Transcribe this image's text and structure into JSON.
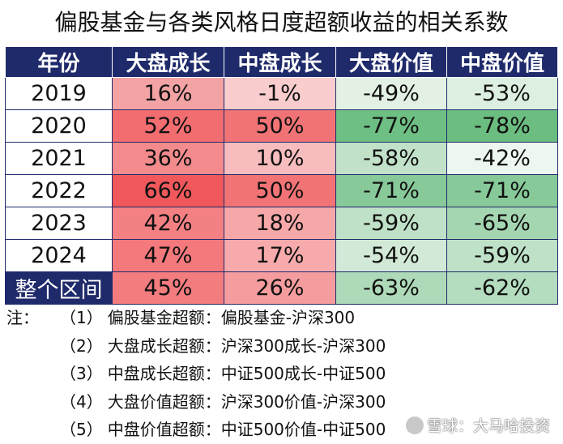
{
  "title": "偏股基金与各类风格日度超额收益的相关系数",
  "table": {
    "headers": [
      "年份",
      "大盘成长",
      "中盘成长",
      "大盘价值",
      "中盘价值"
    ],
    "rows": [
      {
        "year": "2019",
        "values": [
          "16%",
          "-1%",
          "-49%",
          "-53%"
        ],
        "colors": [
          "#f4a3a4",
          "#f9cdcd",
          "#e3f1e5",
          "#dcefe0"
        ]
      },
      {
        "year": "2020",
        "values": [
          "52%",
          "50%",
          "-77%",
          "-78%"
        ],
        "colors": [
          "#f26d70",
          "#f27375",
          "#6ebf83",
          "#6bbd80"
        ]
      },
      {
        "year": "2021",
        "values": [
          "36%",
          "10%",
          "-58%",
          "-42%"
        ],
        "colors": [
          "#f38a8c",
          "#f7bcbd",
          "#c1e2c9",
          "#edf6ef"
        ]
      },
      {
        "year": "2022",
        "values": [
          "66%",
          "50%",
          "-71%",
          "-71%"
        ],
        "colors": [
          "#f0585b",
          "#f27375",
          "#87c999",
          "#87c999"
        ]
      },
      {
        "year": "2023",
        "values": [
          "42%",
          "18%",
          "-59%",
          "-65%"
        ],
        "colors": [
          "#f38083",
          "#f6a8a9",
          "#bfe1c7",
          "#a5d6b2"
        ]
      },
      {
        "year": "2024",
        "values": [
          "47%",
          "17%",
          "-54%",
          "-59%"
        ],
        "colors": [
          "#f3797c",
          "#f6aaab",
          "#d1e9d6",
          "#bfe1c7"
        ]
      }
    ],
    "total": {
      "label": "整个区间",
      "values": [
        "45%",
        "26%",
        "-63%",
        "-62%"
      ],
      "colors": [
        "#f37c7f",
        "#f59c9e",
        "#afdab9",
        "#b4dcbe"
      ]
    }
  },
  "notes": {
    "label": "注：",
    "items": [
      {
        "num": "（1）",
        "text": "偏股基金超额：偏股基金-沪深300"
      },
      {
        "num": "（2）",
        "text": "大盘成长超额：沪深300成长-沪深300"
      },
      {
        "num": "（3）",
        "text": "中盘成长超额：中证500成长-中证500"
      },
      {
        "num": "（4）",
        "text": "大盘价值超额：沪深300价值-沪深300"
      },
      {
        "num": "（5）",
        "text": "中盘价值超额：中证500价值-中证500"
      }
    ]
  },
  "watermark": "雪球：大马哈投资"
}
